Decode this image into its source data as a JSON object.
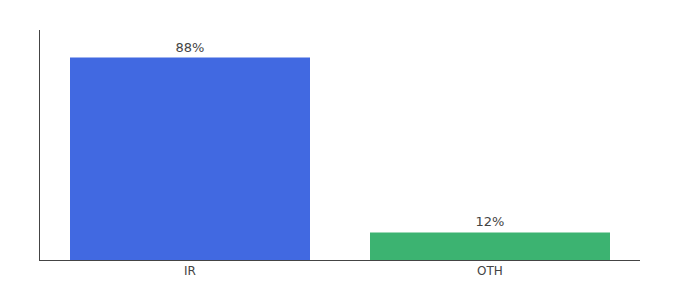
{
  "chart_data": {
    "type": "bar",
    "categories": [
      "IR",
      "OTH"
    ],
    "values": [
      88,
      12
    ],
    "value_labels": [
      "88%",
      "12%"
    ],
    "colors": [
      "#4169E1",
      "#3CB371"
    ],
    "data_labels": true,
    "ylim": [
      0,
      100
    ],
    "tick_labels": "x",
    "grid": false
  }
}
